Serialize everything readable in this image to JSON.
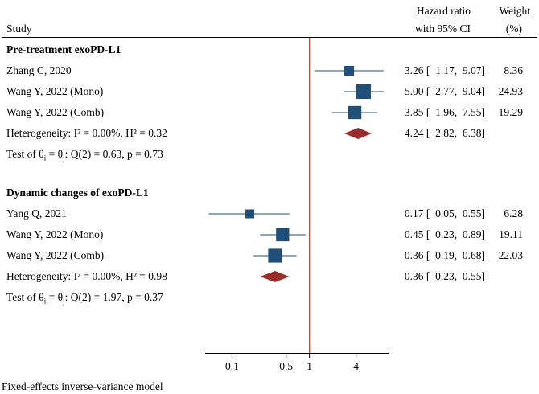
{
  "chart_data": {
    "type": "forest",
    "header": {
      "study_label": "Study",
      "effect_label_line1": "Hazard ratio",
      "effect_label_line2": "with 95% CI",
      "weight_label_line1": "Weight",
      "weight_label_line2": "(%)"
    },
    "x_scale": "log",
    "xlim": [
      0.045,
      10.5
    ],
    "ticks": [
      {
        "value": 0.1,
        "label": "0.1"
      },
      {
        "value": 0.5,
        "label": "0.5"
      },
      {
        "value": 1,
        "label": "1"
      },
      {
        "value": 4,
        "label": "4"
      }
    ],
    "reference_line": 1,
    "color_point": "#1f4e79",
    "color_diamond": "#9b2c2c",
    "color_refline": "#c0392b",
    "groups": [
      {
        "title": "Pre-treatment exoPD-L1",
        "studies": [
          {
            "name": "Zhang C, 2020",
            "hr": 3.26,
            "lo": 1.17,
            "hi": 9.07,
            "weight": 8.36,
            "ci_text": "3.26 [  1.17,  9.07]",
            "weight_text": "8.36"
          },
          {
            "name": "Wang Y, 2022 (Mono)",
            "hr": 5.0,
            "lo": 2.77,
            "hi": 9.04,
            "weight": 24.93,
            "ci_text": "5.00 [  2.77,  9.04]",
            "weight_text": "24.93"
          },
          {
            "name": "Wang Y, 2022 (Comb)",
            "hr": 3.85,
            "lo": 1.96,
            "hi": 7.55,
            "weight": 19.29,
            "ci_text": "3.85 [  1.96,  7.55]",
            "weight_text": "19.29"
          }
        ],
        "summary": {
          "label": "Heterogeneity: I² = 0.00%, H² = 0.32",
          "hr": 4.24,
          "lo": 2.82,
          "hi": 6.38,
          "ci_text": "4.24 [  2.82,  6.38]"
        },
        "test": "Test of θi = θj: Q(2) = 0.63, p = 0.73"
      },
      {
        "title": "Dynamic changes of exoPD-L1",
        "studies": [
          {
            "name": "Yang Q, 2021",
            "hr": 0.17,
            "lo": 0.05,
            "hi": 0.55,
            "weight": 6.28,
            "ci_text": "0.17 [  0.05,  0.55]",
            "weight_text": "6.28"
          },
          {
            "name": "Wang Y, 2022 (Mono)",
            "hr": 0.45,
            "lo": 0.23,
            "hi": 0.89,
            "weight": 19.11,
            "ci_text": "0.45 [  0.23,  0.89]",
            "weight_text": "19.11"
          },
          {
            "name": "Wang Y, 2022 (Comb)",
            "hr": 0.36,
            "lo": 0.19,
            "hi": 0.68,
            "weight": 22.03,
            "ci_text": "0.36 [  0.19,  0.68]",
            "weight_text": "22.03"
          }
        ],
        "summary": {
          "label": "Heterogeneity: I² = 0.00%, H² = 0.98",
          "hr": 0.36,
          "lo": 0.23,
          "hi": 0.55,
          "ci_text": "0.36 [  0.23,  0.55]"
        },
        "test": "Test of θi = θj: Q(2) = 1.97, p = 0.37"
      }
    ],
    "footnote": "Fixed-effects inverse-variance model"
  }
}
